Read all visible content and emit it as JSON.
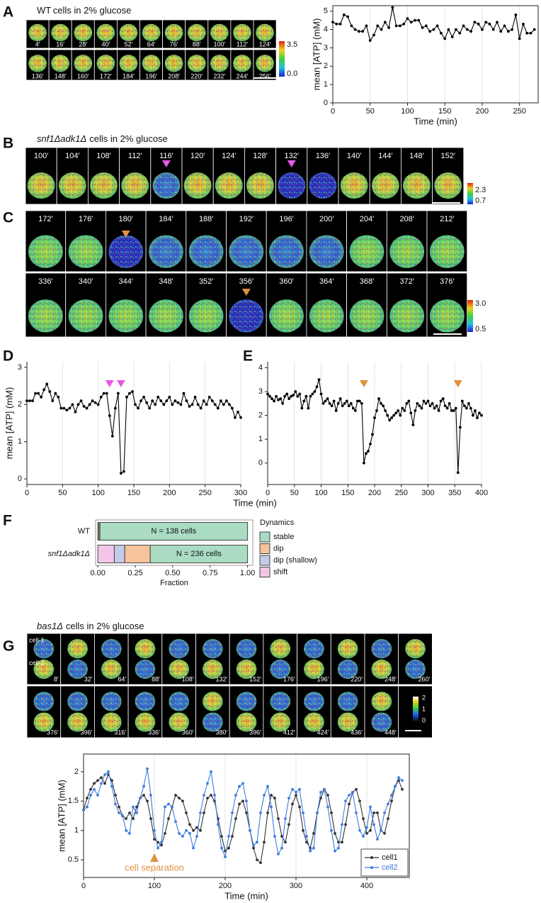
{
  "panel_labels": [
    "A",
    "B",
    "C",
    "D",
    "E",
    "F",
    "G"
  ],
  "images": [
    {
      "strain": "WT",
      "condition": "cells in 2% glucose",
      "rows": [
        [
          "4′",
          "16′",
          "28′",
          "40′",
          "52′",
          "64′",
          "76′",
          "88′",
          "100′",
          "112′",
          "124′"
        ],
        [
          "136′",
          "148′",
          "160′",
          "172′",
          "184′",
          "196′",
          "208′",
          "220′",
          "232′",
          "244′",
          "256′"
        ]
      ],
      "colorbar": [
        "3.5",
        "0.0"
      ]
    },
    {
      "strain": "snf1Δadk1Δ",
      "condition": "cells in 2% glucose",
      "rows": [
        [
          "100′",
          "104′",
          "108′",
          "112′",
          "116′",
          "120′",
          "124′",
          "128′",
          "132′",
          "136′",
          "140′",
          "144′",
          "148′",
          "152′"
        ]
      ],
      "colorbar": [
        "2.3",
        "0.7"
      ]
    },
    {
      "rows": [
        [
          "172′",
          "176′",
          "180′",
          "184′",
          "188′",
          "192′",
          "196′",
          "200′",
          "204′",
          "208′",
          "212′"
        ],
        [
          "336′",
          "340′",
          "344′",
          "348′",
          "352′",
          "356′",
          "360′",
          "364′",
          "368′",
          "372′",
          "376′"
        ]
      ],
      "colorbar": [
        "3.0",
        "0.5"
      ]
    },
    {
      "strain": "bas1Δ",
      "condition": "cells in 2% glucose",
      "cell_labels": [
        "cell-1",
        "cell-2"
      ],
      "rows": [
        [
          "8′",
          "32′",
          "64′",
          "88′",
          "108′",
          "132′",
          "152′",
          "176′",
          "196′",
          "220′",
          "248′",
          "260′"
        ],
        [
          "376′",
          "396′",
          "316′",
          "336′",
          "360′",
          "380′",
          "396′",
          "412′",
          "424′",
          "436′",
          "448′"
        ]
      ],
      "colorbar": [
        "2",
        "1",
        "0"
      ]
    }
  ],
  "chart_data": [
    {
      "type": "line",
      "xlabel": "Time (min)",
      "ylabel": "mean [ATP] (mM)",
      "color": "#000000",
      "grid": true,
      "xlim": [
        0,
        275
      ],
      "xticks": [
        0,
        50,
        100,
        150,
        200,
        250
      ],
      "ylim": [
        0,
        5.3
      ],
      "yticks": [
        0,
        1,
        2,
        3,
        4,
        5
      ],
      "x": [
        0,
        5,
        10,
        15,
        20,
        25,
        30,
        35,
        40,
        45,
        50,
        55,
        60,
        65,
        70,
        75,
        80,
        85,
        90,
        95,
        100,
        105,
        110,
        115,
        120,
        125,
        130,
        135,
        140,
        145,
        150,
        155,
        160,
        165,
        170,
        175,
        180,
        185,
        190,
        195,
        200,
        205,
        210,
        215,
        220,
        225,
        230,
        235,
        240,
        245,
        250,
        255,
        260,
        265,
        270
      ],
      "values": [
        4.4,
        4.3,
        4.3,
        4.8,
        4.7,
        4.2,
        4.0,
        3.9,
        3.9,
        4.2,
        3.4,
        3.7,
        4.2,
        4.0,
        4.4,
        4.1,
        5.2,
        4.2,
        4.2,
        4.3,
        4.6,
        4.4,
        4.5,
        4.5,
        4.1,
        4.2,
        3.9,
        4.0,
        4.2,
        3.8,
        3.5,
        4.0,
        3.6,
        4.0,
        3.8,
        4.2,
        4.0,
        3.9,
        4.4,
        4.3,
        4.0,
        4.4,
        4.3,
        4.0,
        4.4,
        3.9,
        4.2,
        3.9,
        4.0,
        4.8,
        3.5,
        4.3,
        3.8,
        3.8,
        4.0
      ]
    },
    {
      "type": "line",
      "ylabel": "mean [ATP] (mM)",
      "color": "#000000",
      "grid": true,
      "xlim": [
        0,
        300
      ],
      "xticks": [
        0,
        50,
        100,
        150,
        200,
        250,
        300
      ],
      "ylim": [
        -0.15,
        3.15
      ],
      "yticks": [
        0,
        1,
        2,
        3
      ],
      "arrows": {
        "x": [
          116,
          132
        ],
        "color": "#e659e6"
      },
      "x": [
        0,
        4,
        8,
        12,
        16,
        20,
        24,
        28,
        32,
        36,
        40,
        44,
        48,
        52,
        56,
        60,
        64,
        68,
        72,
        76,
        80,
        84,
        88,
        92,
        96,
        100,
        104,
        108,
        112,
        116,
        120,
        124,
        128,
        132,
        136,
        140,
        144,
        148,
        152,
        156,
        160,
        164,
        168,
        172,
        176,
        180,
        184,
        188,
        192,
        196,
        200,
        204,
        208,
        212,
        216,
        220,
        224,
        228,
        232,
        236,
        240,
        244,
        248,
        252,
        256,
        260,
        264,
        268,
        272,
        276,
        280,
        284,
        288,
        292,
        296,
        300
      ],
      "values": [
        2.1,
        2.1,
        2.1,
        2.3,
        2.3,
        2.2,
        2.4,
        2.55,
        2.35,
        2.1,
        2.3,
        2.2,
        1.9,
        1.9,
        1.85,
        1.9,
        2.0,
        1.8,
        2.0,
        2.1,
        1.95,
        1.9,
        2.0,
        2.1,
        2.05,
        2.0,
        2.2,
        2.3,
        2.3,
        1.7,
        1.15,
        1.9,
        2.3,
        0.15,
        0.2,
        2.2,
        2.3,
        2.35,
        2.0,
        1.9,
        2.1,
        2.2,
        2.05,
        1.9,
        2.1,
        2.0,
        2.2,
        2.1,
        2.0,
        2.1,
        2.2,
        2.0,
        2.1,
        2.05,
        2.0,
        2.3,
        2.1,
        1.95,
        2.0,
        2.2,
        2.0,
        1.9,
        2.1,
        2.0,
        2.2,
        2.1,
        2.0,
        1.9,
        2.1,
        2.0,
        2.1,
        2.0,
        1.9,
        1.65,
        1.8,
        1.65
      ]
    },
    {
      "type": "line",
      "xlabel": "Time (min)",
      "color": "#000000",
      "grid": true,
      "xlim": [
        0,
        400
      ],
      "xticks": [
        0,
        50,
        100,
        150,
        200,
        250,
        300,
        350,
        400
      ],
      "ylim": [
        -0.9,
        4.25
      ],
      "yticks": [
        0,
        1,
        2,
        3,
        4
      ],
      "arrows": {
        "x": [
          180,
          356
        ],
        "color": "#e0913f"
      },
      "x": [
        0,
        4,
        8,
        12,
        16,
        20,
        24,
        28,
        32,
        36,
        40,
        44,
        48,
        52,
        56,
        60,
        64,
        68,
        72,
        76,
        80,
        84,
        88,
        92,
        96,
        100,
        104,
        108,
        112,
        116,
        120,
        124,
        128,
        132,
        136,
        140,
        144,
        148,
        152,
        156,
        160,
        164,
        168,
        172,
        176,
        180,
        184,
        188,
        192,
        196,
        200,
        204,
        208,
        212,
        216,
        220,
        224,
        228,
        232,
        236,
        240,
        244,
        248,
        252,
        256,
        260,
        264,
        268,
        272,
        276,
        280,
        284,
        288,
        292,
        296,
        300,
        304,
        308,
        312,
        316,
        320,
        324,
        328,
        332,
        336,
        340,
        344,
        348,
        352,
        356,
        360,
        364,
        368,
        372,
        376,
        380,
        384,
        388,
        392,
        396,
        400
      ],
      "values": [
        2.9,
        2.8,
        2.7,
        2.6,
        2.8,
        2.65,
        2.7,
        2.5,
        2.8,
        2.9,
        2.7,
        2.8,
        2.85,
        3.0,
        2.8,
        2.9,
        2.3,
        2.6,
        2.8,
        2.3,
        2.8,
        2.9,
        3.0,
        3.2,
        3.5,
        2.9,
        2.5,
        2.6,
        2.7,
        2.5,
        2.4,
        2.6,
        2.2,
        2.5,
        2.7,
        2.4,
        2.5,
        2.6,
        2.4,
        2.5,
        2.3,
        2.2,
        2.6,
        2.6,
        2.5,
        0.0,
        0.4,
        0.5,
        0.8,
        1.2,
        1.9,
        2.2,
        2.7,
        2.5,
        2.4,
        2.2,
        2.0,
        1.8,
        1.9,
        2.0,
        2.1,
        2.2,
        2.0,
        2.3,
        2.2,
        2.5,
        2.6,
        2.1,
        1.6,
        2.2,
        2.5,
        2.4,
        2.3,
        2.6,
        2.5,
        2.6,
        2.4,
        2.5,
        2.3,
        2.4,
        2.2,
        2.6,
        2.7,
        2.4,
        2.3,
        2.5,
        2.2,
        2.2,
        2.3,
        -0.4,
        1.5,
        2.6,
        2.4,
        2.3,
        2.5,
        2.3,
        2.0,
        2.2,
        1.9,
        2.1,
        2.0
      ]
    },
    {
      "type": "stacked-barh",
      "xlabel": "Fraction",
      "legend_title": "Dynamics",
      "categories": [
        "WT",
        "snf1Δadk1Δ"
      ],
      "xlim": [
        -0.015,
        1.035
      ],
      "xticks": [
        {
          "value": 0,
          "label": "0.00"
        },
        {
          "value": 0.25,
          "label": "0.25"
        },
        {
          "value": 0.5,
          "label": "0.50"
        },
        {
          "value": 0.75,
          "label": "0.75"
        },
        {
          "value": 1,
          "label": "1.00"
        }
      ],
      "annotations": [
        "N = 138 cells",
        "N = 236 cells"
      ],
      "series": [
        {
          "name": "stable",
          "color": "#a9dcc3",
          "values": [
            0.986,
            0.65
          ]
        },
        {
          "name": "dip",
          "color": "#f7c39b",
          "values": [
            0.007,
            0.17
          ]
        },
        {
          "name": "dip (shallow)",
          "color": "#c4cbe8",
          "values": [
            0.007,
            0.07
          ]
        },
        {
          "name": "shift",
          "color": "#f3c6e8",
          "values": [
            0,
            0.11
          ]
        }
      ]
    },
    {
      "type": "line",
      "xlabel": "Time (min)",
      "ylabel": "mean [ATP] (mM)",
      "grid": true,
      "legend": "lower right",
      "xlim": [
        0,
        460
      ],
      "xticks": [
        0,
        100,
        200,
        300,
        400
      ],
      "ylim": [
        0.2,
        2.3
      ],
      "yticks": [
        0.5,
        1,
        1.5,
        2
      ],
      "annotation": {
        "text": "cell separation",
        "x": 100,
        "color": "#e0913f"
      },
      "x": [
        0,
        5,
        10,
        15,
        20,
        25,
        30,
        35,
        40,
        45,
        50,
        55,
        60,
        65,
        70,
        75,
        80,
        85,
        90,
        95,
        100,
        105,
        110,
        115,
        120,
        125,
        130,
        135,
        140,
        145,
        150,
        155,
        160,
        165,
        170,
        175,
        180,
        185,
        190,
        195,
        200,
        205,
        210,
        215,
        220,
        225,
        230,
        235,
        240,
        245,
        250,
        255,
        260,
        265,
        270,
        275,
        280,
        285,
        290,
        295,
        300,
        305,
        310,
        315,
        320,
        325,
        330,
        335,
        340,
        345,
        350,
        355,
        360,
        365,
        370,
        375,
        380,
        385,
        390,
        395,
        400,
        405,
        410,
        415,
        420,
        425,
        430,
        435,
        440,
        445,
        450
      ],
      "series": [
        {
          "name": "cell1",
          "color": "#333333",
          "values": [
            1.35,
            1.55,
            1.7,
            1.8,
            1.85,
            1.9,
            1.8,
            1.95,
            1.85,
            1.6,
            1.4,
            1.25,
            1.2,
            1.3,
            1.2,
            1.4,
            1.55,
            1.6,
            1.5,
            1.2,
            0.85,
            0.8,
            0.75,
            0.95,
            1.2,
            1.4,
            1.6,
            1.55,
            1.5,
            1.3,
            1.1,
            1.0,
            1.05,
            1.0,
            1.3,
            1.55,
            1.6,
            1.5,
            1.2,
            0.9,
            0.65,
            0.7,
            0.9,
            1.2,
            1.45,
            1.5,
            1.3,
            1.0,
            0.7,
            0.5,
            0.45,
            0.8,
            1.3,
            1.6,
            1.55,
            1.2,
            0.9,
            0.8,
            1.1,
            1.45,
            1.6,
            1.4,
            1.0,
            0.8,
            0.7,
            0.95,
            1.3,
            1.55,
            1.7,
            1.6,
            1.3,
            0.95,
            0.8,
            0.8,
            1.1,
            1.45,
            1.65,
            1.7,
            1.5,
            1.2,
            0.95,
            1.0,
            1.3,
            1.3,
            1.0,
            0.95,
            1.2,
            1.5,
            1.75,
            1.85,
            1.7
          ]
        },
        {
          "name": "cell2",
          "color": "#3d7be0",
          "values": [
            1.35,
            1.4,
            1.6,
            1.7,
            1.6,
            1.8,
            1.95,
            2.0,
            1.75,
            1.45,
            1.3,
            1.25,
            1.0,
            0.95,
            1.4,
            1.3,
            1.55,
            1.75,
            2.05,
            1.6,
            1.0,
            0.7,
            0.8,
            1.4,
            1.45,
            1.4,
            1.15,
            0.95,
            0.9,
            1.0,
            0.95,
            0.7,
            0.9,
            1.3,
            1.6,
            1.8,
            2.0,
            1.6,
            1.1,
            0.7,
            0.55,
            0.9,
            1.3,
            1.6,
            1.75,
            1.8,
            1.5,
            1.0,
            0.75,
            0.8,
            1.3,
            1.6,
            1.75,
            1.4,
            0.9,
            0.6,
            0.7,
            1.2,
            1.55,
            1.7,
            1.65,
            1.7,
            1.3,
            0.9,
            0.65,
            0.7,
            1.3,
            1.65,
            1.7,
            1.4,
            1.0,
            0.65,
            0.7,
            1.1,
            1.5,
            1.6,
            1.65,
            1.3,
            1.0,
            0.9,
            1.05,
            1.4,
            1.1,
            0.85,
            1.0,
            1.3,
            1.45,
            1.6,
            1.75,
            1.9,
            1.85
          ]
        }
      ]
    }
  ]
}
